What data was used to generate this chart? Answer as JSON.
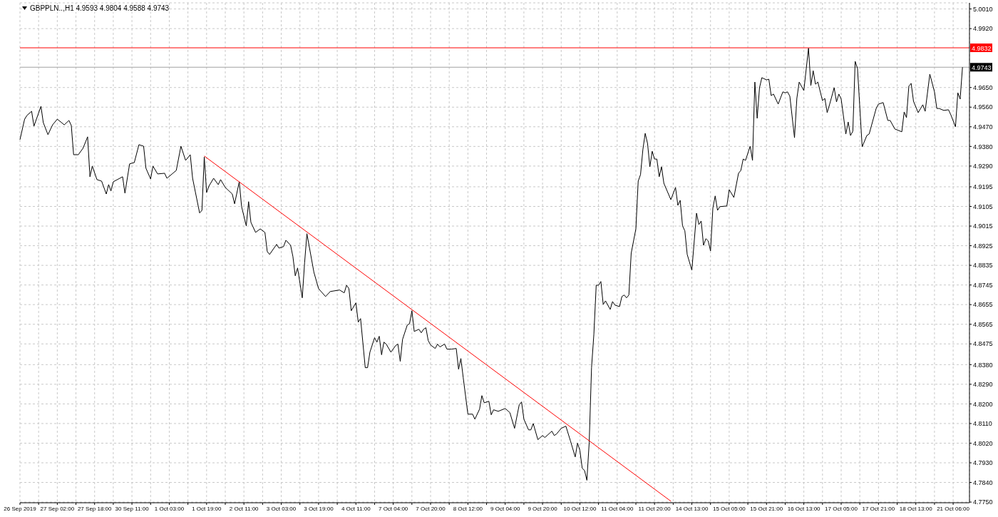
{
  "chart_data": {
    "type": "line",
    "title": "GBPPLN..,H1  4.9593 4.9804 4.9588 4.9743",
    "categories": [
      "26 Sep 2019",
      null,
      null,
      null,
      null,
      null,
      null,
      null,
      null,
      null,
      null,
      null,
      null,
      null,
      null,
      null,
      "27 Sep 02:00",
      null,
      null,
      null,
      null,
      null,
      null,
      null,
      null,
      null,
      null,
      null,
      null,
      null,
      null,
      null,
      "27 Sep 18:00",
      null,
      null,
      null,
      null,
      null,
      null,
      null,
      null,
      null,
      null,
      null,
      null,
      null,
      null,
      null,
      "30 Sep 11:00",
      null,
      null,
      null,
      null,
      null,
      null,
      null,
      null,
      null,
      null,
      null,
      null,
      null,
      null,
      null,
      "1 Oct 03:00",
      null,
      null,
      null,
      null,
      null,
      null,
      null,
      null,
      null,
      null,
      null,
      null,
      null,
      null,
      null,
      "1 Oct 19:00",
      null,
      null,
      null,
      null,
      null,
      null,
      null,
      null,
      null,
      null,
      null,
      null,
      null,
      null,
      null,
      "2 Oct 11:00",
      null,
      null,
      null,
      null,
      null,
      null,
      null,
      null,
      null,
      null,
      null,
      null,
      null,
      null,
      null,
      "3 Oct 03:00",
      null,
      null,
      null,
      null,
      null,
      null,
      null,
      null,
      null,
      null,
      null,
      null,
      null,
      null,
      null,
      "3 Oct 19:00",
      null,
      null,
      null,
      null,
      null,
      null,
      null,
      null,
      null,
      null,
      null,
      null,
      null,
      null,
      null,
      "4 Oct 11:00",
      null,
      null,
      null,
      null,
      null,
      null,
      null,
      null,
      null,
      null,
      null,
      null,
      null,
      null,
      null,
      "7 Oct 04:00",
      null,
      null,
      null,
      null,
      null,
      null,
      null,
      null,
      null,
      null,
      null,
      null,
      null,
      null,
      null,
      "7 Oct 20:00",
      null,
      null,
      null,
      null,
      null,
      null,
      null,
      null,
      null,
      null,
      null,
      null,
      null,
      null,
      null,
      "8 Oct 12:00",
      null,
      null,
      null,
      null,
      null,
      null,
      null,
      null,
      null,
      null,
      null,
      null,
      null,
      null,
      null,
      "9 Oct 04:00",
      null,
      null,
      null,
      null,
      null,
      null,
      null,
      null,
      null,
      null,
      null,
      null,
      null,
      null,
      null,
      "9 Oct 20:00",
      null,
      null,
      null,
      null,
      null,
      null,
      null,
      null,
      null,
      null,
      null,
      null,
      null,
      null,
      null,
      "10 Oct 12:00",
      null,
      null,
      null,
      null,
      null,
      null,
      null,
      null,
      null,
      null,
      null,
      null,
      null,
      null,
      null,
      "11 Oct 04:00",
      null,
      null,
      null,
      null,
      null,
      null,
      null,
      null,
      null,
      null,
      null,
      null,
      null,
      null,
      null,
      "11 Oct 20:00",
      null,
      null,
      null,
      null,
      null,
      null,
      null,
      null,
      null,
      null,
      null,
      null,
      null,
      null,
      null,
      "14 Oct 13:00",
      null,
      null,
      null,
      null,
      null,
      null,
      null,
      null,
      null,
      null,
      null,
      null,
      null,
      null,
      null,
      "15 Oct 05:00",
      null,
      null,
      null,
      null,
      null,
      null,
      null,
      null,
      null,
      null,
      null,
      null,
      null,
      null,
      null,
      "15 Oct 21:00",
      null,
      null,
      null,
      null,
      null,
      null,
      null,
      null,
      null,
      null,
      null,
      null,
      null,
      null,
      null,
      "16 Oct 13:00",
      null,
      null,
      null,
      null,
      null,
      null,
      null,
      null,
      null,
      null,
      null,
      null,
      null,
      null,
      null,
      "17 Oct 05:00",
      null,
      null,
      null,
      null,
      null,
      null,
      null,
      null,
      null,
      null,
      null,
      null,
      null,
      null,
      null,
      "17 Oct 21:00",
      null,
      null,
      null,
      null,
      null,
      null,
      null,
      null,
      null,
      null,
      null,
      null,
      null,
      null,
      null,
      "18 Oct 13:00",
      null,
      null,
      null,
      null,
      null,
      null,
      null,
      null,
      null,
      null,
      null,
      null,
      null,
      null,
      null,
      "21 Oct 06:00",
      null,
      null,
      null,
      null,
      null,
      null,
      null
    ],
    "ylim": [
      4.7747,
      5.0038
    ],
    "yticks": [
      {
        "value": 5.001,
        "label": "5.0010"
      },
      {
        "value": 4.992,
        "label": "4.9920"
      },
      {
        "value": 4.965,
        "label": "4.9650"
      },
      {
        "value": 4.956,
        "label": "4.9560"
      },
      {
        "value": 4.947,
        "label": "4.9470"
      },
      {
        "value": 4.938,
        "label": "4.9380"
      },
      {
        "value": 4.929,
        "label": "4.9290"
      },
      4.9195,
      4.9105,
      4.9015,
      4.8925,
      4.8835,
      4.8745,
      4.8655,
      4.8565,
      4.8475,
      {
        "value": 4.838,
        "label": "4.8380"
      },
      {
        "value": 4.829,
        "label": "4.8290"
      },
      {
        "value": 4.82,
        "label": "4.8200"
      },
      {
        "value": 4.811,
        "label": "4.8110"
      },
      {
        "value": 4.802,
        "label": "4.8020"
      },
      {
        "value": 4.793,
        "label": "4.7930"
      },
      {
        "value": 4.784,
        "label": "4.7840"
      },
      {
        "value": 4.775,
        "label": "4.7750"
      }
    ],
    "grid": true,
    "marker": "none",
    "line_style": "solid",
    "ref_lines": [
      {
        "axis": "y",
        "value": 4.9832,
        "label": "4.9832",
        "color": "#ff0000"
      },
      {
        "axis": "y",
        "value": 4.9743,
        "label": "4.9743",
        "color": "#a0a0a0"
      }
    ],
    "series": [
      {
        "color": "#000000",
        "values": [
          4.9411,
          null,
          4.9505,
          4.9522,
          null,
          4.9541,
          4.9473,
          null,
          null,
          4.9564,
          4.9489,
          null,
          4.9434,
          null,
          4.9479,
          null,
          4.9505,
          null,
          null,
          4.9479,
          null,
          4.9499,
          4.9476,
          4.9342,
          null,
          4.9342,
          null,
          4.9371,
          null,
          4.9424,
          4.9241,
          4.929,
          null,
          4.9228,
          null,
          4.9221,
          null,
          4.9162,
          4.9205,
          4.9176,
          4.9218,
          null,
          null,
          null,
          4.9241,
          4.9166,
          null,
          4.93,
          null,
          4.9306,
          null,
          4.9388,
          null,
          4.9381,
          4.928,
          null,
          4.9231,
          4.929,
          null,
          4.9254,
          null,
          null,
          4.9257,
          4.9234,
          null,
          null,
          null,
          4.927,
          null,
          4.9381,
          null,
          4.9316,
          null,
          4.9342,
          4.9234,
          null,
          null,
          4.9075,
          4.9087,
          4.9332,
          4.9169,
          4.9198,
          null,
          4.9234,
          null,
          4.9205,
          4.9228,
          null,
          4.9192,
          4.9182,
          null,
          4.9162,
          4.9117,
          null,
          4.9218,
          4.9104,
          null,
          4.9016,
          4.9127,
          4.9032,
          null,
          4.8986,
          null,
          4.9002,
          null,
          4.8986,
          4.8898,
          4.8885,
          null,
          null,
          4.8931,
          4.8914,
          null,
          4.8921,
          4.895,
          null,
          4.8927,
          4.8875,
          4.8787,
          4.8823,
          null,
          4.8686,
          4.8846,
          4.898,
          null,
          null,
          4.8803,
          null,
          4.8728,
          null,
          null,
          4.8692,
          null,
          4.8715,
          null,
          null,
          null,
          4.8722,
          null,
          4.8709,
          4.8744,
          4.8728,
          4.8627,
          null,
          4.8663,
          4.8575,
          4.8591,
          null,
          4.8366,
          4.8366,
          4.8437,
          null,
          4.8503,
          4.8483,
          4.851,
          4.8425,
          4.8483,
          4.8474,
          null,
          4.8437,
          null,
          4.8467,
          4.8474,
          4.8395,
          4.8496,
          null,
          4.8561,
          4.8568,
          4.8627,
          4.8532,
          null,
          4.8542,
          4.8526,
          4.8542,
          4.8549,
          4.849,
          4.847,
          null,
          4.8454,
          4.8474,
          4.8461,
          null,
          4.8474,
          4.8451,
          null,
          4.8451,
          null,
          4.8454,
          4.8359,
          4.8408,
          4.832,
          null,
          4.8153,
          null,
          4.8153,
          4.813,
          null,
          4.8176,
          4.8238,
          4.8205,
          null,
          4.8212,
          4.815,
          4.8173,
          null,
          4.8166,
          null,
          null,
          4.8179,
          null,
          4.816,
          null,
          4.8088,
          null,
          4.8196,
          4.8209,
          4.813,
          null,
          4.8081,
          4.8081,
          4.811,
          null,
          4.8036,
          null,
          4.8055,
          4.8046,
          null,
          null,
          4.8075,
          4.8055,
          4.8062,
          null,
          4.8088,
          null,
          4.8098,
          null,
          4.8029,
          null,
          4.7957,
          4.802,
          4.7987,
          4.7905,
          4.7895,
          4.785,
          4.8023,
          4.8366,
          4.8519,
          4.8744,
          4.8744,
          4.8761,
          4.8656,
          4.8672,
          null,
          4.8633,
          4.8669,
          4.8653,
          null,
          4.8646,
          4.8692,
          4.8699,
          4.8686,
          4.8699,
          4.8891,
          null,
          4.9002,
          4.9221,
          4.9251,
          4.9365,
          4.944,
          4.9394,
          4.9287,
          4.9358,
          4.9322,
          4.9322,
          4.9241,
          4.9287,
          4.9211,
          null,
          null,
          4.9136,
          null,
          4.9192,
          4.911,
          4.9133,
          4.9016,
          4.8993,
          4.8885,
          null,
          4.8813,
          null,
          4.9074,
          4.9022,
          4.9038,
          4.8927,
          4.8957,
          4.8947,
          4.8901,
          4.9097,
          4.9153,
          4.9087,
          4.9104,
          null,
          null,
          4.9107,
          4.9182,
          null,
          4.9146,
          null,
          4.9257,
          4.927,
          4.9322,
          4.9316,
          null,
          4.9381,
          4.9316,
          4.9675,
          4.9509,
          4.9649,
          4.9695,
          null,
          4.9685,
          4.9688,
          4.9613,
          4.962,
          null,
          4.9574,
          null,
          4.963,
          4.9626,
          4.963,
          4.961,
          null,
          4.942,
          4.96,
          4.9675,
          null,
          4.9636,
          null,
          4.983,
          4.9659,
          4.9727,
          4.9665,
          4.9675,
          null,
          4.959,
          4.96,
          4.9535,
          4.9571,
          null,
          4.9649,
          4.9584,
          4.962,
          4.9597,
          null,
          4.9437,
          4.9492,
          4.943,
          4.945,
          4.977,
          4.9737,
          null,
          4.9378,
          null,
          4.943,
          4.9437,
          null,
          null,
          4.9554,
          4.9574,
          null,
          4.9581,
          null,
          4.9499,
          4.9499,
          null,
          4.946,
          null,
          null,
          4.9447,
          4.9538,
          4.9512,
          4.9656,
          4.9669,
          4.9587,
          null,
          4.9535,
          null,
          4.9571,
          4.9541,
          null,
          4.9711,
          null,
          4.963,
          4.9554,
          4.9554,
          null,
          4.9545,
          null,
          4.9548,
          4.9525,
          null,
          4.947,
          4.9626,
          4.9597,
          4.9743,
          null,
          null,
          null
        ]
      },
      {
        "type": "line",
        "color": "#ff0000",
        "values": [
          null,
          null,
          null,
          null,
          null,
          null,
          null,
          null,
          null,
          null,
          null,
          null,
          null,
          null,
          null,
          null,
          null,
          null,
          null,
          null,
          null,
          null,
          null,
          null,
          null,
          null,
          null,
          null,
          null,
          null,
          null,
          null,
          null,
          null,
          null,
          null,
          null,
          null,
          null,
          null,
          null,
          null,
          null,
          null,
          null,
          null,
          null,
          null,
          null,
          null,
          null,
          null,
          null,
          null,
          null,
          null,
          null,
          null,
          null,
          null,
          null,
          null,
          null,
          null,
          null,
          null,
          null,
          null,
          null,
          null,
          null,
          null,
          null,
          null,
          null,
          null,
          null,
          null,
          null,
          4.9336,
          null,
          null,
          null,
          null,
          null,
          null,
          null,
          null,
          null,
          null,
          null,
          null,
          null,
          null,
          null,
          null,
          null,
          null,
          null,
          null,
          null,
          null,
          null,
          null,
          null,
          null,
          null,
          null,
          null,
          null,
          null,
          null,
          null,
          null,
          null,
          null,
          null,
          null,
          null,
          null,
          null,
          null,
          null,
          null,
          null,
          null,
          null,
          null,
          null,
          null,
          null,
          null,
          null,
          null,
          null,
          null,
          null,
          null,
          null,
          null,
          null,
          null,
          null,
          null,
          null,
          null,
          null,
          null,
          null,
          null,
          null,
          null,
          null,
          null,
          null,
          null,
          null,
          null,
          null,
          null,
          null,
          null,
          null,
          null,
          null,
          null,
          null,
          null,
          null,
          null,
          null,
          null,
          null,
          null,
          null,
          null,
          null,
          null,
          null,
          null,
          null,
          null,
          null,
          null,
          null,
          null,
          null,
          null,
          null,
          null,
          null,
          null,
          null,
          null,
          null,
          null,
          null,
          null,
          null,
          null,
          null,
          null,
          null,
          null,
          null,
          null,
          null,
          null,
          null,
          null,
          null,
          null,
          null,
          null,
          null,
          null,
          null,
          null,
          null,
          null,
          null,
          null,
          null,
          null,
          null,
          null,
          null,
          null,
          null,
          null,
          null,
          null,
          null,
          null,
          null,
          null,
          null,
          null,
          null,
          null,
          null,
          null,
          null,
          null,
          null,
          null,
          null,
          null,
          null,
          null,
          null,
          null,
          null,
          null,
          null,
          null,
          null,
          null,
          null,
          null,
          null,
          null,
          null,
          null,
          null,
          null,
          null,
          null,
          null,
          null,
          null,
          null,
          null,
          null,
          null,
          null,
          null,
          null,
          null,
          4.7754,
          null,
          null,
          null,
          null,
          null,
          null,
          null,
          null,
          null,
          null,
          null,
          null,
          null,
          null,
          null,
          null,
          null,
          null,
          null,
          null,
          null,
          null,
          null,
          null,
          null,
          null,
          null,
          null,
          null,
          null,
          null,
          null,
          null,
          null,
          null,
          null,
          null,
          null,
          null,
          null,
          null,
          null,
          null,
          null,
          null,
          null,
          null,
          null,
          null,
          null,
          null,
          null,
          null,
          null,
          null,
          null,
          null,
          null,
          null,
          null,
          null,
          null,
          null,
          null,
          null,
          null,
          null,
          null,
          null,
          null,
          null,
          null,
          null,
          null,
          null,
          null,
          null,
          null,
          null,
          null,
          null,
          null,
          null,
          null,
          null,
          null,
          null,
          null,
          null,
          null,
          null,
          null,
          null,
          null,
          null,
          null,
          null,
          null,
          null,
          null,
          null,
          null,
          null,
          null,
          null,
          null,
          null,
          null,
          null,
          null,
          null,
          null,
          null,
          null,
          null,
          null,
          null,
          null,
          null,
          null,
          null,
          null,
          null,
          null,
          null,
          null,
          null,
          null
        ]
      }
    ]
  }
}
